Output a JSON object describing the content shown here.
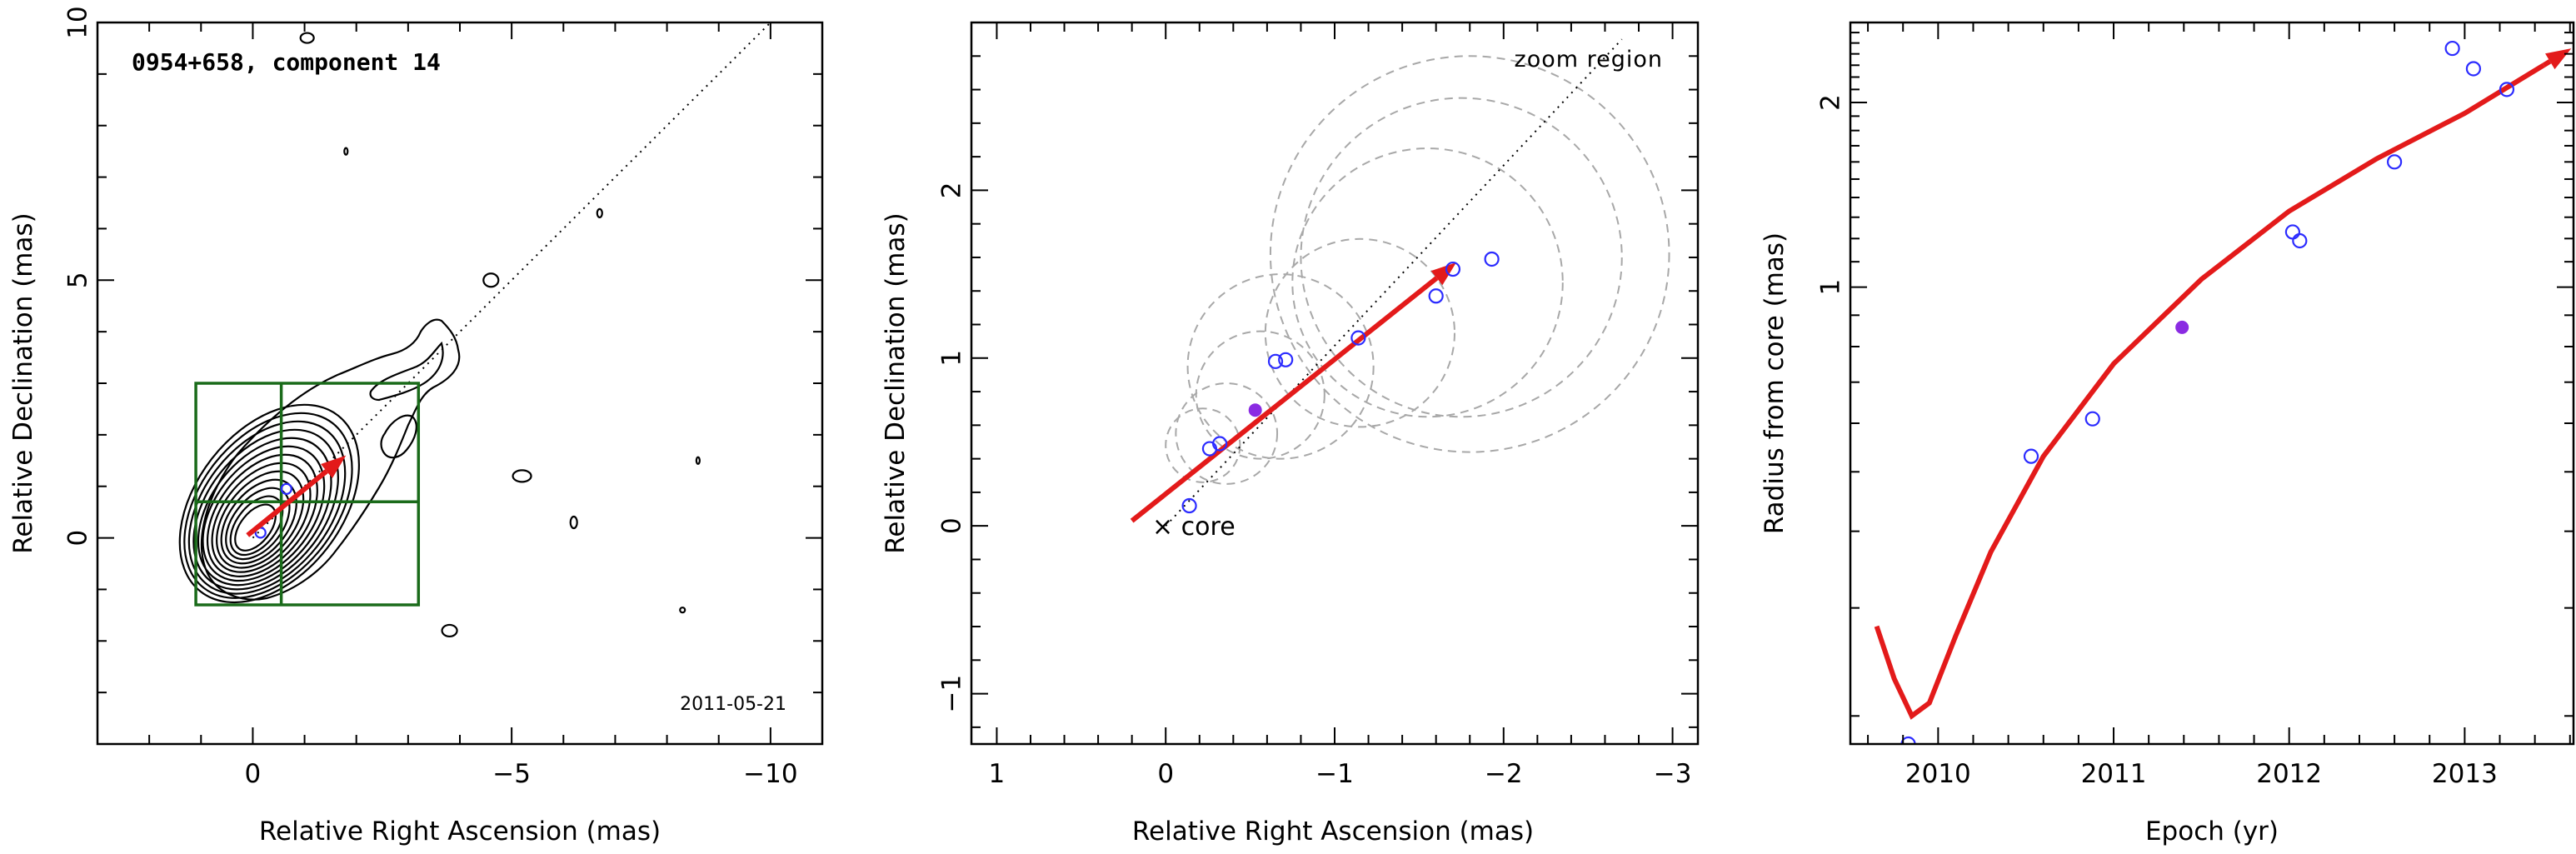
{
  "colors": {
    "axis": "#000000",
    "open_points": "#2b2bff",
    "filled_point": "#8a2be2",
    "trajectory": "#e31a1a",
    "zoom_box": "#1a6b1a",
    "dashed_circles": "#a8a8a8"
  },
  "chart_data": [
    {
      "type": "scatter",
      "panel": "left",
      "title": "0954+658, component 14",
      "annotation": "2011-05-21",
      "xlabel": "Relative Right Ascension (mas)",
      "ylabel": "Relative Declination (mas)",
      "xlim": [
        3,
        -11
      ],
      "ylim": [
        -4,
        10
      ],
      "x_inverted": true,
      "xticks": [
        0,
        -5,
        -10
      ],
      "xtick_labels": [
        "0",
        "−5",
        "−10"
      ],
      "yticks": [
        0,
        5,
        10
      ],
      "ytick_labels": [
        "0",
        "5",
        "10"
      ],
      "trajectory_arrow": {
        "from": [
          0.1,
          0.05
        ],
        "to": [
          -1.8,
          1.6
        ]
      },
      "jet_axis_line": {
        "from": [
          0.0,
          0.0
        ],
        "to": [
          -10.0,
          10.0
        ]
      },
      "zoom_box": {
        "x": [
          1.1,
          -3.2
        ],
        "y": [
          -1.3,
          3.0
        ],
        "cross": [
          -0.55,
          0.7
        ]
      },
      "points": [
        [
          -0.15,
          0.1
        ],
        [
          -0.65,
          0.95
        ]
      ]
    },
    {
      "type": "scatter",
      "panel": "middle",
      "annotation_top": "zoom region",
      "annotation_core": "× core",
      "xlabel": "Relative Right Ascension (mas)",
      "ylabel": "Relative Declination (mas)",
      "xlim": [
        1.15,
        -3.15
      ],
      "ylim": [
        -1.3,
        3.0
      ],
      "x_inverted": true,
      "xticks": [
        1,
        0,
        -1,
        -2,
        -3
      ],
      "xtick_labels": [
        "1",
        "0",
        "−1",
        "−2",
        "−3"
      ],
      "yticks": [
        -1,
        0,
        1,
        2
      ],
      "ytick_labels": [
        "−1",
        "0",
        "1",
        "2"
      ],
      "trajectory_arrow": {
        "from": [
          0.2,
          0.03
        ],
        "to": [
          -1.72,
          1.57
        ]
      },
      "jet_axis_line": {
        "from": [
          0.0,
          0.0
        ],
        "to": [
          -2.7,
          2.9
        ]
      },
      "series": [
        {
          "points": [
            {
              "x": -0.14,
              "y": 0.12
            },
            {
              "x": -0.26,
              "y": 0.46
            },
            {
              "x": -0.32,
              "y": 0.49
            },
            {
              "x": -0.65,
              "y": 0.98
            },
            {
              "x": -0.71,
              "y": 0.99
            },
            {
              "x": -1.14,
              "y": 1.12
            },
            {
              "x": -1.6,
              "y": 1.37
            },
            {
              "x": -1.7,
              "y": 1.53
            },
            {
              "x": -1.93,
              "y": 1.59
            }
          ]
        },
        {
          "filled": true,
          "points": [
            {
              "x": -0.53,
              "y": 0.69
            }
          ]
        }
      ],
      "dashed_circles": [
        {
          "cx": -0.22,
          "cy": 0.48,
          "r": 0.22
        },
        {
          "cx": -0.36,
          "cy": 0.55,
          "r": 0.3
        },
        {
          "cx": -0.56,
          "cy": 0.78,
          "r": 0.38
        },
        {
          "cx": -0.68,
          "cy": 0.95,
          "r": 0.55
        },
        {
          "cx": -1.15,
          "cy": 1.15,
          "r": 0.56
        },
        {
          "cx": -1.55,
          "cy": 1.45,
          "r": 0.8
        },
        {
          "cx": -1.75,
          "cy": 1.6,
          "r": 0.95
        },
        {
          "cx": -1.8,
          "cy": 1.62,
          "r": 1.18
        }
      ]
    },
    {
      "type": "scatter",
      "panel": "right",
      "xlabel": "Epoch (yr)",
      "ylabel": "Radius from core (mas)",
      "xlim": [
        2009.5,
        2013.62
      ],
      "ylim": [
        0.18,
        2.7
      ],
      "xticks": [
        2010,
        2011,
        2012,
        2013
      ],
      "xtick_labels": [
        "2010",
        "2011",
        "2012",
        "2013"
      ],
      "yticks": [
        1,
        2
      ],
      "ytick_labels": [
        "1",
        "2"
      ],
      "fit_curve": {
        "points": [
          [
            2009.65,
            0.28
          ],
          [
            2009.75,
            0.23
          ],
          [
            2009.85,
            0.2
          ],
          [
            2009.95,
            0.21
          ],
          [
            2010.1,
            0.27
          ],
          [
            2010.3,
            0.37
          ],
          [
            2010.6,
            0.53
          ],
          [
            2011.0,
            0.75
          ],
          [
            2011.5,
            1.03
          ],
          [
            2012.0,
            1.33
          ],
          [
            2012.5,
            1.62
          ],
          [
            2013.0,
            1.92
          ],
          [
            2013.45,
            2.3
          ]
        ]
      },
      "series": [
        {
          "points": [
            {
              "x": 2009.83,
              "y": 0.18
            },
            {
              "x": 2010.53,
              "y": 0.53
            },
            {
              "x": 2010.88,
              "y": 0.61
            },
            {
              "x": 2012.02,
              "y": 1.23
            },
            {
              "x": 2012.06,
              "y": 1.19
            },
            {
              "x": 2012.6,
              "y": 1.6
            },
            {
              "x": 2012.93,
              "y": 2.45
            },
            {
              "x": 2013.05,
              "y": 2.27
            },
            {
              "x": 2013.24,
              "y": 2.1
            }
          ]
        },
        {
          "filled": true,
          "points": [
            {
              "x": 2011.39,
              "y": 0.86
            }
          ]
        }
      ]
    }
  ]
}
